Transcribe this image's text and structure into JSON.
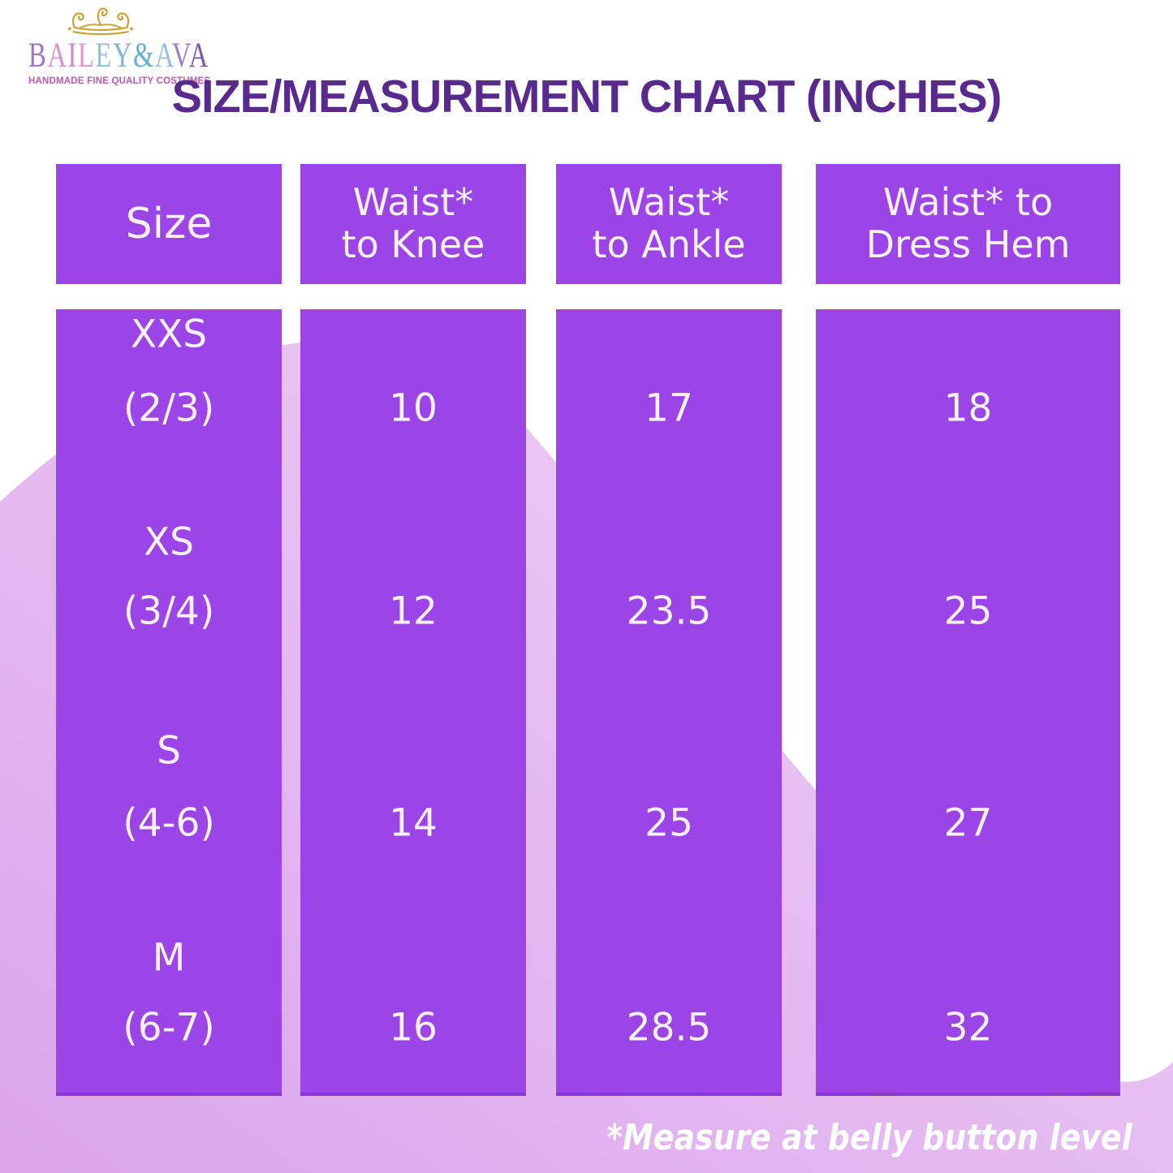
{
  "logo": {
    "letters": [
      {
        "char": "B",
        "color": "#a073c3"
      },
      {
        "char": "A",
        "color": "#dd92c8"
      },
      {
        "char": "I",
        "color": "#cc85cc"
      },
      {
        "char": "L",
        "color": "#e096cd"
      },
      {
        "char": "E",
        "color": "#93bfdf"
      },
      {
        "char": "Y",
        "color": "#7fb4dd"
      },
      {
        "char": "&",
        "color": "#64aeda"
      },
      {
        "char": "A",
        "color": "#97c0de"
      },
      {
        "char": "V",
        "color": "#9c7ec7"
      },
      {
        "char": "A",
        "color": "#7e58ab"
      }
    ],
    "tagline": "HANDMADE FINE QUALITY COSTUMES"
  },
  "title": "SIZE/MEASUREMENT CHART (INCHES)",
  "table": {
    "columns": [
      {
        "header": "Size"
      },
      {
        "line1": "Waist*",
        "line2": "to Knee"
      },
      {
        "line1": "Waist*",
        "line2": "to Ankle"
      },
      {
        "line1": "Waist* to",
        "line2": "Dress Hem"
      }
    ],
    "rows": [
      {
        "size": "XXS",
        "range": "(2/3)",
        "waist_to_knee": "10",
        "waist_to_ankle": "17",
        "waist_to_dress_hem": "18"
      },
      {
        "size": "XS",
        "range": "(3/4)",
        "waist_to_knee": "12",
        "waist_to_ankle": "23.5",
        "waist_to_dress_hem": "25"
      },
      {
        "size": "S",
        "range": "(4-6)",
        "waist_to_knee": "14",
        "waist_to_ankle": "25",
        "waist_to_dress_hem": "27"
      },
      {
        "size": "M",
        "range": "(6-7)",
        "waist_to_knee": "16",
        "waist_to_ankle": "28.5",
        "waist_to_dress_hem": "32"
      }
    ]
  },
  "footnote": "*Measure at belly button level",
  "colors": {
    "column_purple": "#9b45e8",
    "cell_text_cream": "#fbf1f8",
    "title_purple": "#582a8e",
    "blob_lavender_dark": "#dca4ec",
    "blob_lavender_light": "#eed6f7",
    "footnote_white": "#ffffff",
    "crown_gold": "#c9a235",
    "tagline_pink": "#bc57b4"
  },
  "chart_data": {
    "type": "table",
    "title": "SIZE/MEASUREMENT CHART (INCHES)",
    "units": "inches",
    "columns": [
      "Size",
      "Waist* to Knee",
      "Waist* to Ankle",
      "Waist* to Dress Hem"
    ],
    "rows": [
      [
        "XXS (2/3)",
        10,
        17,
        18
      ],
      [
        "XS (3/4)",
        12,
        23.5,
        25
      ],
      [
        "S (4-6)",
        14,
        25,
        27
      ],
      [
        "M (6-7)",
        16,
        28.5,
        32
      ]
    ],
    "footnote": "*Measure at belly button level"
  }
}
